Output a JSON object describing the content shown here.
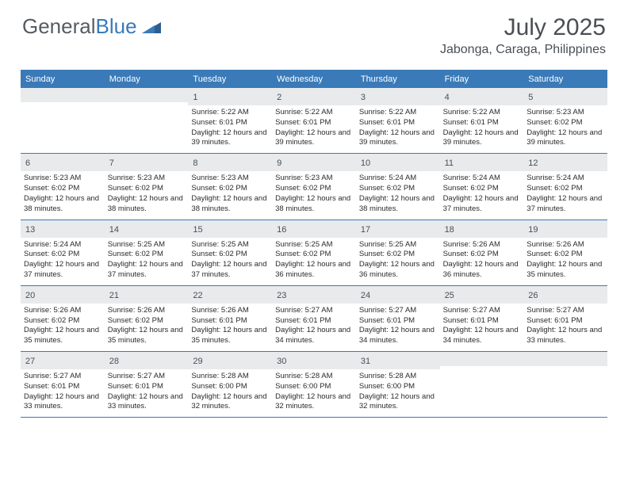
{
  "brand": {
    "word1": "General",
    "word2": "Blue",
    "word1_color": "#555c63",
    "word2_color": "#3a7ab8",
    "shape_color": "#2e5e8f"
  },
  "header": {
    "month_title": "July 2025",
    "location": "Jabonga, Caraga, Philippines"
  },
  "styling": {
    "page_bg": "#ffffff",
    "header_bar_color": "#3a7ab8",
    "weekday_text_color": "#ffffff",
    "day_number_bg": "#e8eaec",
    "day_number_color": "#4a4f55",
    "body_text_color": "#2b2b2b",
    "divider_color": "#3a7ab8",
    "month_title_fontsize": 30,
    "location_fontsize": 16,
    "weekday_fontsize": 11,
    "day_number_fontsize": 11,
    "detail_fontsize": 9.5
  },
  "weekdays": [
    "Sunday",
    "Monday",
    "Tuesday",
    "Wednesday",
    "Thursday",
    "Friday",
    "Saturday"
  ],
  "weeks": [
    [
      null,
      null,
      {
        "n": "1",
        "sunrise": "Sunrise: 5:22 AM",
        "sunset": "Sunset: 6:01 PM",
        "daylight": "Daylight: 12 hours and 39 minutes."
      },
      {
        "n": "2",
        "sunrise": "Sunrise: 5:22 AM",
        "sunset": "Sunset: 6:01 PM",
        "daylight": "Daylight: 12 hours and 39 minutes."
      },
      {
        "n": "3",
        "sunrise": "Sunrise: 5:22 AM",
        "sunset": "Sunset: 6:01 PM",
        "daylight": "Daylight: 12 hours and 39 minutes."
      },
      {
        "n": "4",
        "sunrise": "Sunrise: 5:22 AM",
        "sunset": "Sunset: 6:01 PM",
        "daylight": "Daylight: 12 hours and 39 minutes."
      },
      {
        "n": "5",
        "sunrise": "Sunrise: 5:23 AM",
        "sunset": "Sunset: 6:02 PM",
        "daylight": "Daylight: 12 hours and 39 minutes."
      }
    ],
    [
      {
        "n": "6",
        "sunrise": "Sunrise: 5:23 AM",
        "sunset": "Sunset: 6:02 PM",
        "daylight": "Daylight: 12 hours and 38 minutes."
      },
      {
        "n": "7",
        "sunrise": "Sunrise: 5:23 AM",
        "sunset": "Sunset: 6:02 PM",
        "daylight": "Daylight: 12 hours and 38 minutes."
      },
      {
        "n": "8",
        "sunrise": "Sunrise: 5:23 AM",
        "sunset": "Sunset: 6:02 PM",
        "daylight": "Daylight: 12 hours and 38 minutes."
      },
      {
        "n": "9",
        "sunrise": "Sunrise: 5:23 AM",
        "sunset": "Sunset: 6:02 PM",
        "daylight": "Daylight: 12 hours and 38 minutes."
      },
      {
        "n": "10",
        "sunrise": "Sunrise: 5:24 AM",
        "sunset": "Sunset: 6:02 PM",
        "daylight": "Daylight: 12 hours and 38 minutes."
      },
      {
        "n": "11",
        "sunrise": "Sunrise: 5:24 AM",
        "sunset": "Sunset: 6:02 PM",
        "daylight": "Daylight: 12 hours and 37 minutes."
      },
      {
        "n": "12",
        "sunrise": "Sunrise: 5:24 AM",
        "sunset": "Sunset: 6:02 PM",
        "daylight": "Daylight: 12 hours and 37 minutes."
      }
    ],
    [
      {
        "n": "13",
        "sunrise": "Sunrise: 5:24 AM",
        "sunset": "Sunset: 6:02 PM",
        "daylight": "Daylight: 12 hours and 37 minutes."
      },
      {
        "n": "14",
        "sunrise": "Sunrise: 5:25 AM",
        "sunset": "Sunset: 6:02 PM",
        "daylight": "Daylight: 12 hours and 37 minutes."
      },
      {
        "n": "15",
        "sunrise": "Sunrise: 5:25 AM",
        "sunset": "Sunset: 6:02 PM",
        "daylight": "Daylight: 12 hours and 37 minutes."
      },
      {
        "n": "16",
        "sunrise": "Sunrise: 5:25 AM",
        "sunset": "Sunset: 6:02 PM",
        "daylight": "Daylight: 12 hours and 36 minutes."
      },
      {
        "n": "17",
        "sunrise": "Sunrise: 5:25 AM",
        "sunset": "Sunset: 6:02 PM",
        "daylight": "Daylight: 12 hours and 36 minutes."
      },
      {
        "n": "18",
        "sunrise": "Sunrise: 5:26 AM",
        "sunset": "Sunset: 6:02 PM",
        "daylight": "Daylight: 12 hours and 36 minutes."
      },
      {
        "n": "19",
        "sunrise": "Sunrise: 5:26 AM",
        "sunset": "Sunset: 6:02 PM",
        "daylight": "Daylight: 12 hours and 35 minutes."
      }
    ],
    [
      {
        "n": "20",
        "sunrise": "Sunrise: 5:26 AM",
        "sunset": "Sunset: 6:02 PM",
        "daylight": "Daylight: 12 hours and 35 minutes."
      },
      {
        "n": "21",
        "sunrise": "Sunrise: 5:26 AM",
        "sunset": "Sunset: 6:02 PM",
        "daylight": "Daylight: 12 hours and 35 minutes."
      },
      {
        "n": "22",
        "sunrise": "Sunrise: 5:26 AM",
        "sunset": "Sunset: 6:01 PM",
        "daylight": "Daylight: 12 hours and 35 minutes."
      },
      {
        "n": "23",
        "sunrise": "Sunrise: 5:27 AM",
        "sunset": "Sunset: 6:01 PM",
        "daylight": "Daylight: 12 hours and 34 minutes."
      },
      {
        "n": "24",
        "sunrise": "Sunrise: 5:27 AM",
        "sunset": "Sunset: 6:01 PM",
        "daylight": "Daylight: 12 hours and 34 minutes."
      },
      {
        "n": "25",
        "sunrise": "Sunrise: 5:27 AM",
        "sunset": "Sunset: 6:01 PM",
        "daylight": "Daylight: 12 hours and 34 minutes."
      },
      {
        "n": "26",
        "sunrise": "Sunrise: 5:27 AM",
        "sunset": "Sunset: 6:01 PM",
        "daylight": "Daylight: 12 hours and 33 minutes."
      }
    ],
    [
      {
        "n": "27",
        "sunrise": "Sunrise: 5:27 AM",
        "sunset": "Sunset: 6:01 PM",
        "daylight": "Daylight: 12 hours and 33 minutes."
      },
      {
        "n": "28",
        "sunrise": "Sunrise: 5:27 AM",
        "sunset": "Sunset: 6:01 PM",
        "daylight": "Daylight: 12 hours and 33 minutes."
      },
      {
        "n": "29",
        "sunrise": "Sunrise: 5:28 AM",
        "sunset": "Sunset: 6:00 PM",
        "daylight": "Daylight: 12 hours and 32 minutes."
      },
      {
        "n": "30",
        "sunrise": "Sunrise: 5:28 AM",
        "sunset": "Sunset: 6:00 PM",
        "daylight": "Daylight: 12 hours and 32 minutes."
      },
      {
        "n": "31",
        "sunrise": "Sunrise: 5:28 AM",
        "sunset": "Sunset: 6:00 PM",
        "daylight": "Daylight: 12 hours and 32 minutes."
      },
      null,
      null
    ]
  ]
}
